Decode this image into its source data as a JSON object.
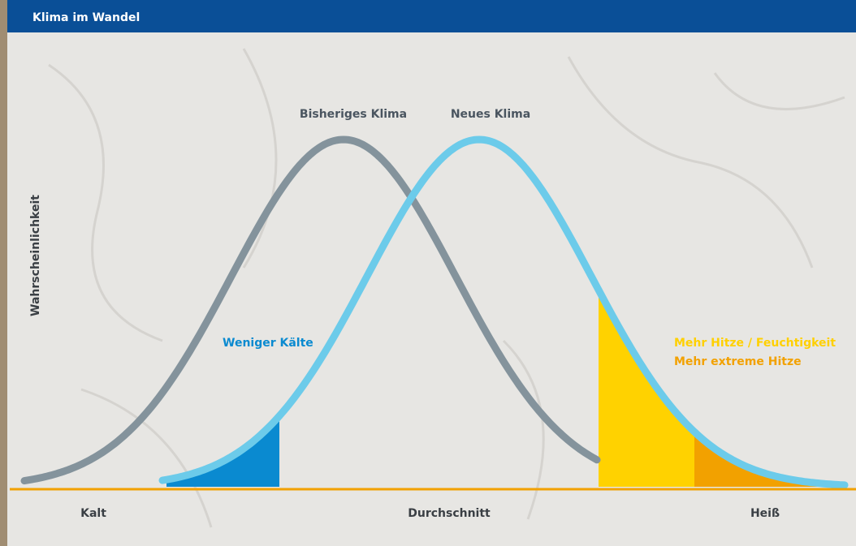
{
  "header": {
    "title": "Klima im Wandel"
  },
  "curves": {
    "previous": "Bisheriges Klima",
    "new": "Neues Klima"
  },
  "y_axis_label": "Wahrscheinlichkeit",
  "annotations": {
    "less_cold": "Weniger Kälte",
    "more_heat_humidity": "Mehr Hitze / Feuchtigkeit",
    "more_extreme_heat": "Mehr extreme Hitze"
  },
  "x_axis_labels": {
    "cold": "Kalt",
    "average": "Durchschnitt",
    "hot": "Heiß"
  }
}
